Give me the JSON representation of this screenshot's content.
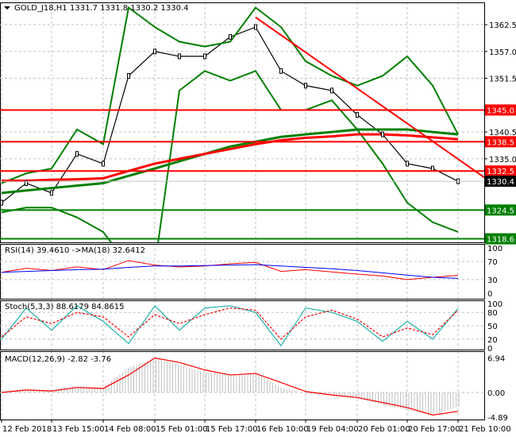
{
  "header": {
    "title": "GOLD_J18,H1",
    "ohlc": "1331.7 1331.8 1330.2 1330.4"
  },
  "chart_data": [
    {
      "type": "line",
      "title": "GOLD_J18,H1",
      "times": [
        "12 Feb 2018",
        "13 Feb 07:00",
        "13 Feb 15:00",
        "13 Feb 23:00",
        "14 Feb 08:00",
        "14 Feb 16:00",
        "15 Feb 01:00",
        "15 Feb 09:00",
        "15 Feb 17:00",
        "16 Feb 01:00",
        "16 Feb 10:00",
        "16 Feb 18:00",
        "19 Feb 04:00",
        "19 Feb 16:00",
        "20 Feb 01:00",
        "20 Feb 09:00",
        "20 Feb 17:00",
        "21 Feb 01:00",
        "21 Feb 10:00"
      ],
      "x_tick_labels": [
        "12 Feb 2018",
        "13 Feb 15:00",
        "14 Feb 08:00",
        "15 Feb 01:00",
        "15 Feb 17:00",
        "16 Feb 10:00",
        "19 Feb 04:00",
        "20 Feb 01:00",
        "20 Feb 17:00",
        "21 Feb 10:00"
      ],
      "y_tick_labels": [
        "1362.5",
        "1357.0",
        "1351.5",
        "1340.5",
        "1335.0"
      ],
      "ylim": [
        1318,
        1367
      ],
      "grid": true,
      "series": [
        {
          "key": "close",
          "values": [
            1326,
            1330,
            1328,
            1336,
            1334,
            1352,
            1357,
            1356,
            1356,
            1360,
            1362,
            1353,
            1350,
            1349,
            1344,
            1340,
            1334,
            1333,
            1330.4
          ],
          "color": "#000000"
        },
        {
          "key": "bb_upper",
          "values": [
            1330,
            1332,
            1333,
            1341,
            1338,
            1366,
            1362,
            1359,
            1358,
            1359,
            1366,
            1362,
            1355,
            1352,
            1350,
            1352,
            1356,
            1350,
            1340
          ],
          "color": "#008000"
        },
        {
          "key": "bb_lower",
          "values": [
            1324,
            1325,
            1325,
            1323,
            1320,
            1313,
            1313,
            1349,
            1353,
            1351,
            1353,
            1345,
            1345,
            1347,
            1341,
            1334,
            1326,
            1322,
            1320
          ],
          "color": "#008000"
        },
        {
          "key": "ma_slow_green",
          "values": [
            1328,
            1328.5,
            1329,
            1329.5,
            1330,
            1331.5,
            1333,
            1334.5,
            1336,
            1337.5,
            1338.5,
            1339.5,
            1340,
            1340.5,
            1341,
            1341,
            1341,
            1340.5,
            1340
          ],
          "color": "#008000"
        },
        {
          "key": "ma_slow_red",
          "values": [
            1330.5,
            1330.5,
            1330.7,
            1330.8,
            1331,
            1332.5,
            1334,
            1335,
            1336,
            1337,
            1338,
            1338.8,
            1339.3,
            1339.6,
            1340,
            1340,
            1339.8,
            1339.4,
            1339
          ],
          "color": "#ff0000"
        }
      ],
      "levels": [
        {
          "value": "1345.0",
          "color": "#ff0000"
        },
        {
          "value": "1338.5",
          "color": "#ff0000"
        },
        {
          "value": "1332.5",
          "color": "#ff0000"
        },
        {
          "value": "1324.5",
          "color": "#008000"
        },
        {
          "value": "1318.6",
          "color": "#008000"
        }
      ],
      "current_price": "1330.4",
      "trendline": {
        "from": {
          "time": "16 Feb 10:00",
          "value": 1364
        },
        "to": {
          "time": "21 Feb 10:00",
          "value": 1332
        },
        "color": "#ff0000"
      }
    },
    {
      "type": "line",
      "title": "RSI(14) 39.4610  ->MA(18) 32.6412",
      "ylim": [
        0,
        100
      ],
      "y_tick_labels": [
        "100",
        "70",
        "30",
        "0"
      ],
      "series": [
        {
          "key": "rsi",
          "values": [
            46,
            55,
            50,
            58,
            52,
            72,
            62,
            58,
            60,
            65,
            68,
            48,
            52,
            47,
            42,
            38,
            30,
            35,
            39.46
          ],
          "color": "#ff0000"
        },
        {
          "key": "rsi_ma",
          "values": [
            46,
            48,
            50,
            52,
            53,
            57,
            60,
            60,
            61,
            62,
            63,
            60,
            57,
            54,
            50,
            45,
            40,
            35,
            32.64
          ],
          "color": "#0000ff"
        }
      ]
    },
    {
      "type": "line",
      "title": "Stoch(5,3,3) 88.6179 84.8615",
      "ylim": [
        0,
        100
      ],
      "y_tick_labels": [
        "100",
        "80",
        "50",
        "20",
        "0"
      ],
      "series": [
        {
          "key": "k",
          "values": [
            20,
            90,
            40,
            95,
            60,
            10,
            95,
            40,
            90,
            95,
            80,
            5,
            90,
            80,
            60,
            15,
            60,
            20,
            88.62
          ],
          "color": "#20b2aa"
        },
        {
          "key": "d",
          "values": [
            25,
            70,
            55,
            80,
            70,
            25,
            75,
            55,
            75,
            90,
            85,
            20,
            70,
            85,
            65,
            25,
            45,
            30,
            84.86
          ],
          "color": "#ff0000"
        }
      ]
    },
    {
      "type": "bar",
      "title": "MACD(12,26,9) -2.82 -3.76",
      "ylim": [
        -4.89,
        6.94
      ],
      "y_tick_labels": [
        "6.94",
        "0.00",
        "-4.89"
      ],
      "series": [
        {
          "key": "macd_hist",
          "values": [
            0.2,
            0.8,
            0.5,
            1.4,
            1,
            5,
            6.8,
            5.5,
            4,
            3.5,
            4,
            1,
            -0.2,
            -0.6,
            -1.2,
            -2.5,
            -3.5,
            -4.6,
            -2.82
          ],
          "color": "#c0c0c0"
        },
        {
          "key": "signal",
          "values": [
            0,
            0.5,
            0.3,
            1,
            0.8,
            3.5,
            6.9,
            6,
            4.5,
            3.5,
            3.8,
            2,
            0.2,
            -0.5,
            -1,
            -2,
            -3,
            -4.5,
            -3.76
          ],
          "color": "#ff0000"
        }
      ]
    }
  ]
}
